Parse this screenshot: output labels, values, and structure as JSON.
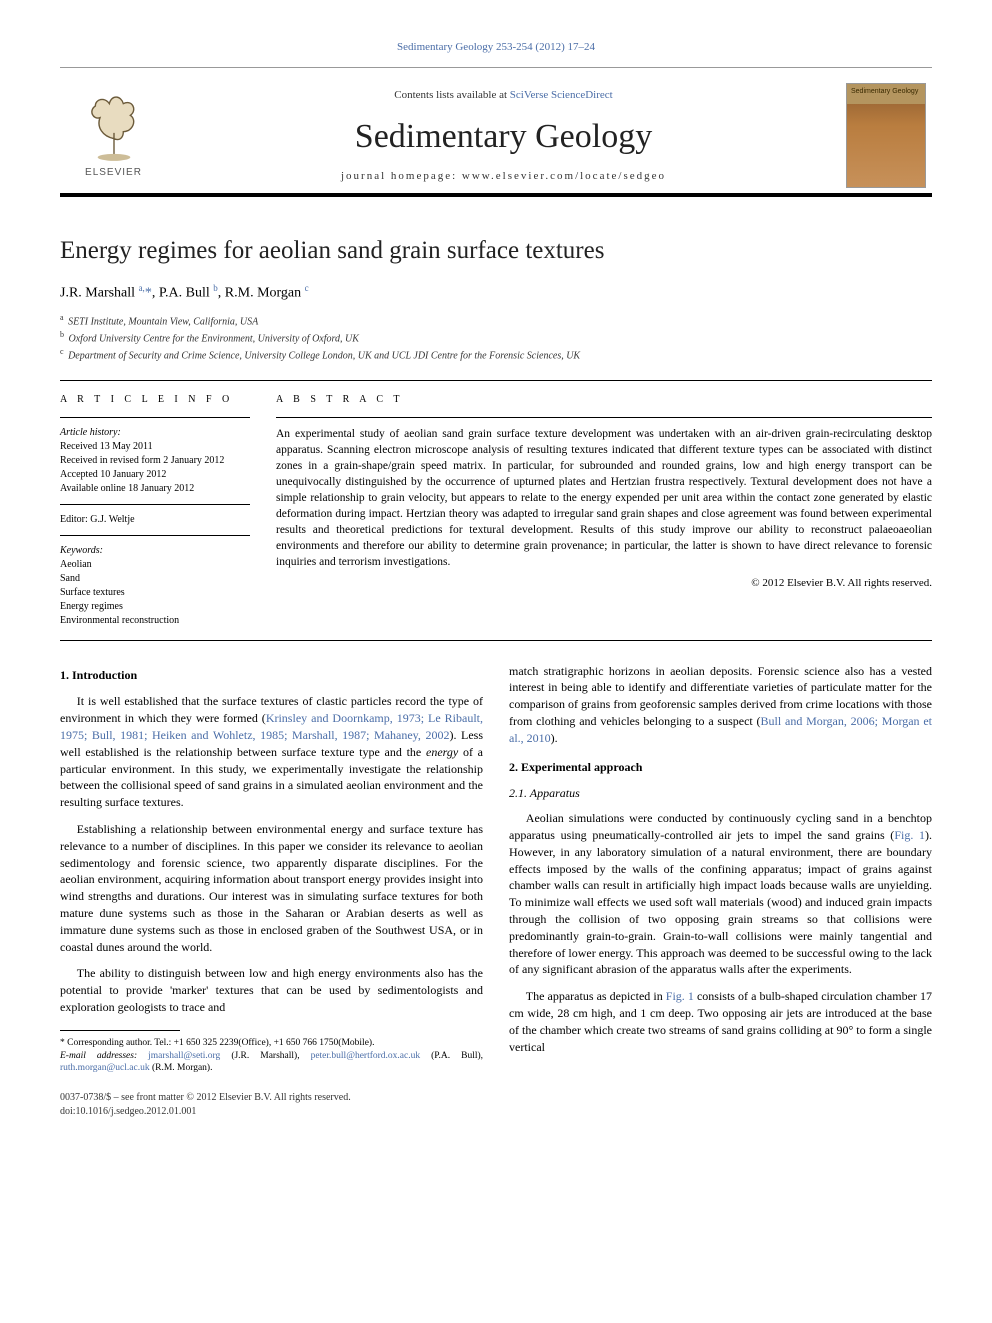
{
  "citation": "Sedimentary Geology 253-254 (2012) 17–24",
  "header": {
    "contents_prefix": "Contents lists available at ",
    "contents_link": "SciVerse ScienceDirect",
    "journal": "Sedimentary Geology",
    "homepage_label": "journal homepage: ",
    "homepage_url": "www.elsevier.com/locate/sedgeo",
    "publisher": "ELSEVIER",
    "cover_label": "Sedimentary Geology"
  },
  "article": {
    "title": "Energy regimes for aeolian sand grain surface textures",
    "authors_html": "J.R. Marshall <sup>a,</sup><span class='star'>*</span>, P.A. Bull <sup>b</sup>, R.M. Morgan <sup>c</sup>",
    "affiliations": {
      "a": "SETI Institute, Mountain View, California, USA",
      "b": "Oxford University Centre for the Environment, University of Oxford, UK",
      "c": "Department of Security and Crime Science, University College London, UK and UCL JDI Centre for the Forensic Sciences, UK"
    }
  },
  "article_info": {
    "heading": "A R T I C L E   I N F O",
    "history_label": "Article history:",
    "received": "Received 13 May 2011",
    "revised": "Received in revised form 2 January 2012",
    "accepted": "Accepted 10 January 2012",
    "online": "Available online 18 January 2012",
    "editor_label": "Editor: G.J. Weltje",
    "keywords_label": "Keywords:",
    "keywords": [
      "Aeolian",
      "Sand",
      "Surface textures",
      "Energy regimes",
      "Environmental reconstruction"
    ]
  },
  "abstract": {
    "heading": "A B S T R A C T",
    "text": "An experimental study of aeolian sand grain surface texture development was undertaken with an air-driven grain-recirculating desktop apparatus. Scanning electron microscope analysis of resulting textures indicated that different texture types can be associated with distinct zones in a grain-shape/grain speed matrix. In particular, for subrounded and rounded grains, low and high energy transport can be unequivocally distinguished by the occurrence of upturned plates and Hertzian frustra respectively. Textural development does not have a simple relationship to grain velocity, but appears to relate to the energy expended per unit area within the contact zone generated by elastic deformation during impact. Hertzian theory was adapted to irregular sand grain shapes and close agreement was found between experimental results and theoretical predictions for textural development. Results of this study improve our ability to reconstruct palaeoaeolian environments and therefore our ability to determine grain provenance; in particular, the latter is shown to have direct relevance to forensic inquiries and terrorism investigations.",
    "copyright": "© 2012 Elsevier B.V. All rights reserved."
  },
  "sections": {
    "s1_head": "1. Introduction",
    "s1_p1_a": "It is well established that the surface textures of clastic particles record the type of environment in which they were formed (",
    "s1_p1_ref": "Krinsley and Doornkamp, 1973; Le Ribault, 1975; Bull, 1981; Heiken and Wohletz, 1985; Marshall, 1987; Mahaney, 2002",
    "s1_p1_b": "). Less well established is the relationship between surface texture type and the ",
    "s1_p1_em": "energy",
    "s1_p1_c": " of a particular environment. In this study, we experimentally investigate the relationship between the collisional speed of sand grains in a simulated aeolian environment and the resulting surface textures.",
    "s1_p2": "Establishing a relationship between environmental energy and surface texture has relevance to a number of disciplines. In this paper we consider its relevance to aeolian sedimentology and forensic science, two apparently disparate disciplines. For the aeolian environment, acquiring information about transport energy provides insight into wind strengths and durations. Our interest was in simulating surface textures for both mature dune systems such as those in the Saharan or Arabian deserts as well as immature dune systems such as those in enclosed graben of the Southwest USA, or in coastal dunes around the world.",
    "s1_p3": "The ability to distinguish between low and high energy environments also has the potential to provide 'marker' textures that can be used by sedimentologists and exploration geologists to trace and",
    "s1_p3b_a": "match stratigraphic horizons in aeolian deposits. Forensic science also has a vested interest in being able to identify and differentiate varieties of particulate matter for the comparison of grains from geoforensic samples derived from crime locations with those from clothing and vehicles belonging to a suspect (",
    "s1_p3b_ref": "Bull and Morgan, 2006; Morgan et al., 2010",
    "s1_p3b_b": ").",
    "s2_head": "2. Experimental approach",
    "s2_1_head": "2.1. Apparatus",
    "s2_1_p1_a": "Aeolian simulations were conducted by continuously cycling sand in a benchtop apparatus using pneumatically-controlled air jets to impel the sand grains (",
    "s2_1_p1_fig": "Fig. 1",
    "s2_1_p1_b": "). However, in any laboratory simulation of a natural environment, there are boundary effects imposed by the walls of the confining apparatus; impact of grains against chamber walls can result in artificially high impact loads because walls are unyielding. To minimize wall effects we used soft wall materials (wood) and induced grain impacts through the collision of two opposing grain streams so that collisions were predominantly grain-to-grain. Grain-to-wall collisions were mainly tangential and therefore of lower energy. This approach was deemed to be successful owing to the lack of any significant abrasion of the apparatus walls after the experiments.",
    "s2_1_p2_a": "The apparatus as depicted in ",
    "s2_1_p2_fig": "Fig. 1",
    "s2_1_p2_b": " consists of a bulb-shaped circulation chamber 17 cm wide, 28 cm high, and 1 cm deep. Two opposing air jets are introduced at the base of the chamber which create two streams of sand grains colliding at 90° to form a single vertical"
  },
  "footnote": {
    "corr_label": "* Corresponding author. Tel.: +1 650 325 2239(Office), +1 650 766 1750(Mobile).",
    "email_label": "E-mail addresses:",
    "email1": "jmarshall@seti.org",
    "email1_who": "(J.R. Marshall),",
    "email2": "peter.bull@hertford.ox.ac.uk",
    "email2_who": "(P.A. Bull),",
    "email3": "ruth.morgan@ucl.ac.uk",
    "email3_who": "(R.M. Morgan)."
  },
  "pubfooter": {
    "left1": "0037-0738/$ – see front matter © 2012 Elsevier B.V. All rights reserved.",
    "left2": "doi:10.1016/j.sedgeo.2012.01.001"
  },
  "colors": {
    "link": "#4a6da7",
    "text": "#000000",
    "rule": "#000000"
  }
}
